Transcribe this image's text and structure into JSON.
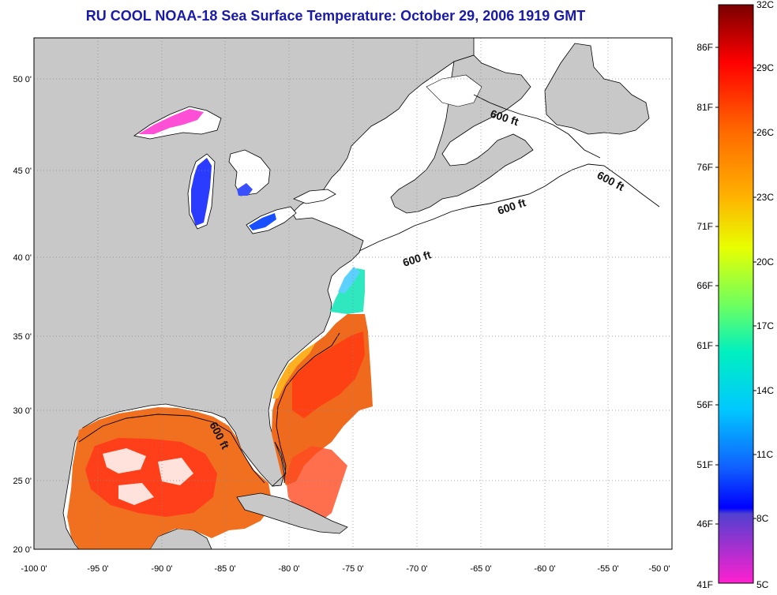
{
  "title": "RU COOL  NOAA-18  Sea Surface Temperature:  October 29, 2006 1919 GMT",
  "lat_labels": [
    "50 0'",
    "45 0'",
    "40 0'",
    "35 0'",
    "30 0'",
    "25 0'",
    "20 0'"
  ],
  "lon_labels": [
    "-100 0'",
    "-95 0'",
    "-90 0'",
    "-85 0'",
    "-80 0'",
    "-75 0'",
    "-70 0'",
    "-65 0'",
    "-60 0'",
    "-55 0'",
    "-50 0'"
  ],
  "isobath_label": "600 ft",
  "colorbar": {
    "fahrenheit_labels": [
      "86F",
      "81F",
      "76F",
      "71F",
      "66F",
      "61F",
      "56F",
      "51F",
      "46F",
      "41F"
    ],
    "celsius_labels": [
      "32C",
      "29C",
      "26C",
      "23C",
      "20C",
      "17C",
      "14C",
      "11C",
      "8C",
      "5C"
    ]
  },
  "colors": {
    "land": "#c8c8c8",
    "water_no_data": "#ffffff",
    "title": "#1a1aa8",
    "grid": "#888888"
  }
}
